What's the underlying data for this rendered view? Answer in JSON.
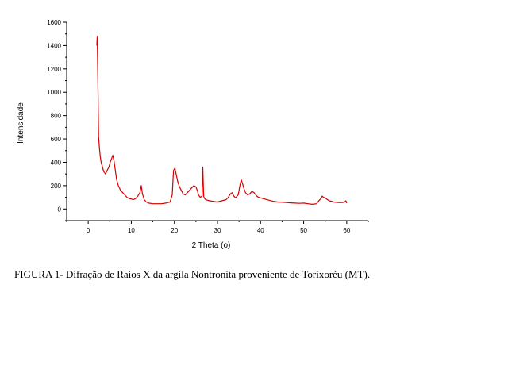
{
  "chart_data": {
    "type": "line",
    "title": "",
    "xlabel": "2 Theta (o)",
    "ylabel": "Intensidade",
    "xlim": [
      -5,
      65
    ],
    "ylim": [
      -100,
      1600
    ],
    "xticks": [
      0,
      10,
      20,
      30,
      40,
      50,
      60
    ],
    "yticks": [
      0,
      200,
      400,
      600,
      800,
      1000,
      1200,
      1400,
      1600
    ],
    "grid": false,
    "legend": "none",
    "line_color": "#d40000",
    "series": [
      {
        "x": [
          2.0,
          2.1,
          2.2,
          2.3,
          2.4,
          2.6,
          2.8,
          3.0,
          3.3,
          3.6,
          4.0,
          4.4,
          4.8,
          5.1,
          5.4,
          5.7,
          6.0,
          6.3,
          6.6,
          7.0,
          7.5,
          8.0,
          8.5,
          9.0,
          9.5,
          10.0,
          10.5,
          11.0,
          11.5,
          12.0,
          12.3,
          12.6,
          13.0,
          13.5,
          14.0,
          15.0,
          16.0,
          17.0,
          18.0,
          19.0,
          19.5,
          19.8,
          20.1,
          20.4,
          20.8,
          21.2,
          21.6,
          22.0,
          22.5,
          23.0,
          23.5,
          24.0,
          24.5,
          25.0,
          25.3,
          25.6,
          26.0,
          26.4,
          26.6,
          26.8,
          27.0,
          27.3,
          27.7,
          28.2,
          29.0,
          30.0,
          31.0,
          32.0,
          32.5,
          33.0,
          33.4,
          33.8,
          34.2,
          34.8,
          35.2,
          35.5,
          35.8,
          36.1,
          36.5,
          37.0,
          37.5,
          38.0,
          38.5,
          39.0,
          39.5,
          40.0,
          41.0,
          42.0,
          43.0,
          44.0,
          45.0,
          46.0,
          47.0,
          48.0,
          49.0,
          50.0,
          51.0,
          52.0,
          53.0,
          53.5,
          54.0,
          54.3,
          54.6,
          55.0,
          55.5,
          56.0,
          57.0,
          58.0,
          59.0,
          59.5,
          59.8,
          60.0
        ],
        "y": [
          1400,
          1480,
          1200,
          960,
          620,
          520,
          450,
          400,
          360,
          320,
          300,
          330,
          360,
          400,
          430,
          460,
          410,
          330,
          250,
          200,
          160,
          140,
          120,
          100,
          90,
          85,
          80,
          90,
          110,
          140,
          200,
          130,
          80,
          60,
          50,
          45,
          45,
          45,
          50,
          60,
          120,
          330,
          350,
          300,
          230,
          190,
          160,
          130,
          120,
          140,
          160,
          180,
          200,
          190,
          160,
          120,
          100,
          110,
          360,
          110,
          90,
          80,
          75,
          70,
          65,
          60,
          70,
          80,
          100,
          130,
          140,
          110,
          95,
          120,
          200,
          250,
          220,
          180,
          140,
          120,
          130,
          150,
          140,
          115,
          100,
          95,
          85,
          75,
          65,
          60,
          58,
          55,
          52,
          50,
          48,
          50,
          45,
          40,
          45,
          70,
          90,
          110,
          100,
          95,
          80,
          70,
          60,
          55,
          55,
          60,
          70,
          50
        ]
      }
    ]
  },
  "caption": "FIGURA 1- Difração de Raios X da argila Nontronita proveniente de Torixoréu (MT)."
}
